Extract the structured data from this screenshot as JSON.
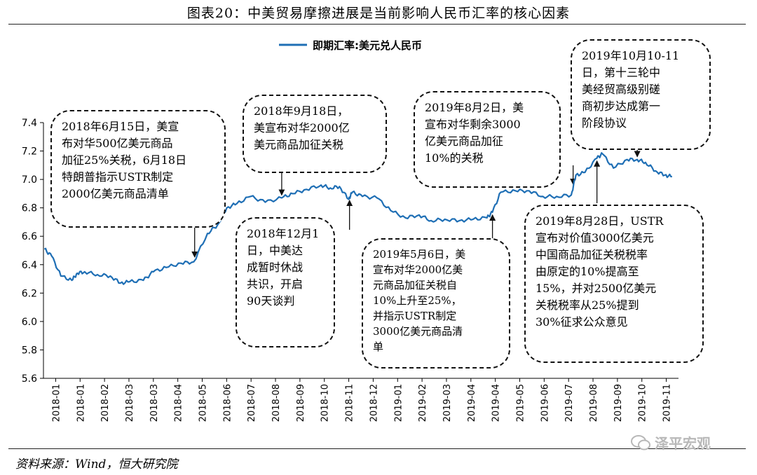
{
  "title": "图表20：中美贸易摩擦进展是当前影响人民币汇率的核心因素",
  "source": "资料来源：Wind，恒大研究院",
  "watermark": "泽平宏观",
  "colors": {
    "series": "#1f6fb5",
    "axis": "#000000"
  },
  "chart_data": {
    "type": "line",
    "legend": {
      "position": "top-center"
    },
    "ylim": [
      5.6,
      7.4
    ],
    "yticks": [
      "7.4",
      "7.2",
      "7.0",
      "6.8",
      "6.6",
      "6.4",
      "6.2",
      "6.0",
      "5.8",
      "5.6"
    ],
    "xticks": [
      "2018-01",
      "2018-01",
      "2018-02",
      "2018-03",
      "2018-03",
      "2018-04",
      "2018-05",
      "2018-06",
      "2018-07",
      "2018-08",
      "2018-09",
      "2018-10",
      "2018-11",
      "2018-12",
      "2019-01",
      "2019-02",
      "2019-03",
      "2019-04",
      "2019-04",
      "2019-05",
      "2019-06",
      "2019-07",
      "2019-08",
      "2019-09",
      "2019-10",
      "2019-11"
    ],
    "series": [
      {
        "name": "即期汇率:美元兑人民币",
        "x": [
          "2018-01-02",
          "2018-01-10",
          "2018-01-20",
          "2018-02-01",
          "2018-02-07",
          "2018-02-15",
          "2018-03-01",
          "2018-03-15",
          "2018-03-26",
          "2018-04-05",
          "2018-04-20",
          "2018-05-01",
          "2018-05-15",
          "2018-05-31",
          "2018-06-14",
          "2018-06-29",
          "2018-07-10",
          "2018-07-20",
          "2018-07-31",
          "2018-08-15",
          "2018-08-31",
          "2018-09-18",
          "2018-09-30",
          "2018-10-15",
          "2018-10-31",
          "2018-11-10",
          "2018-11-20",
          "2018-11-30",
          "2018-12-04",
          "2018-12-15",
          "2018-12-31",
          "2019-01-15",
          "2019-01-31",
          "2019-02-15",
          "2019-02-28",
          "2019-03-15",
          "2019-03-31",
          "2019-04-15",
          "2019-04-30",
          "2019-05-06",
          "2019-05-15",
          "2019-05-31",
          "2019-06-15",
          "2019-06-30",
          "2019-07-15",
          "2019-07-31",
          "2019-08-05",
          "2019-08-15",
          "2019-08-28",
          "2019-09-03",
          "2019-09-15",
          "2019-09-30",
          "2019-10-11",
          "2019-10-20",
          "2019-10-31",
          "2019-11-10",
          "2019-11-18"
        ],
        "y": [
          6.51,
          6.46,
          6.32,
          6.29,
          6.34,
          6.35,
          6.33,
          6.32,
          6.27,
          6.28,
          6.29,
          6.35,
          6.38,
          6.41,
          6.42,
          6.62,
          6.68,
          6.8,
          6.83,
          6.88,
          6.84,
          6.87,
          6.9,
          6.93,
          6.96,
          6.94,
          6.95,
          6.86,
          6.91,
          6.88,
          6.87,
          6.78,
          6.73,
          6.75,
          6.71,
          6.72,
          6.71,
          6.72,
          6.73,
          6.77,
          6.91,
          6.92,
          6.92,
          6.88,
          6.88,
          6.89,
          7.03,
          7.05,
          7.15,
          7.18,
          7.08,
          7.14,
          7.14,
          7.12,
          7.06,
          7.03,
          7.02
        ]
      }
    ]
  },
  "annotations": [
    {
      "text": "2018年6月15日，美宣\n布对华500亿美元商品\n加征25%关税，6月18日\n特朗普指示USTR制定\n2000亿美元商品清单"
    },
    {
      "text": "2018年9月18日，\n美宣布对华2000亿\n美元商品加征关税"
    },
    {
      "text": "2018年12月1\n日，中美达\n成暂时休战\n共识，开启\n90天谈判"
    },
    {
      "text": "2019年5月6日，美\n宣布对华2000亿美\n元商品加征关税自\n10%上升至25%，\n并指示USTR制定\n3000亿美元商品清\n单"
    },
    {
      "text": "2019年8月2日，美\n宣布对华剩余3000\n亿美元商品加征\n10%的关税"
    },
    {
      "text": "2019年10月10-11\n日，第十三轮中\n美经贸高级别磋\n商初步达成第一\n阶段协议"
    },
    {
      "text": "2019年8月28日，USTR\n宣布对价值3000亿美元\n中国商品加征关税税率\n由原定的10%提高至\n15%，并对2500亿美元\n关税税率从25%提到\n30%征求公众意见"
    }
  ]
}
